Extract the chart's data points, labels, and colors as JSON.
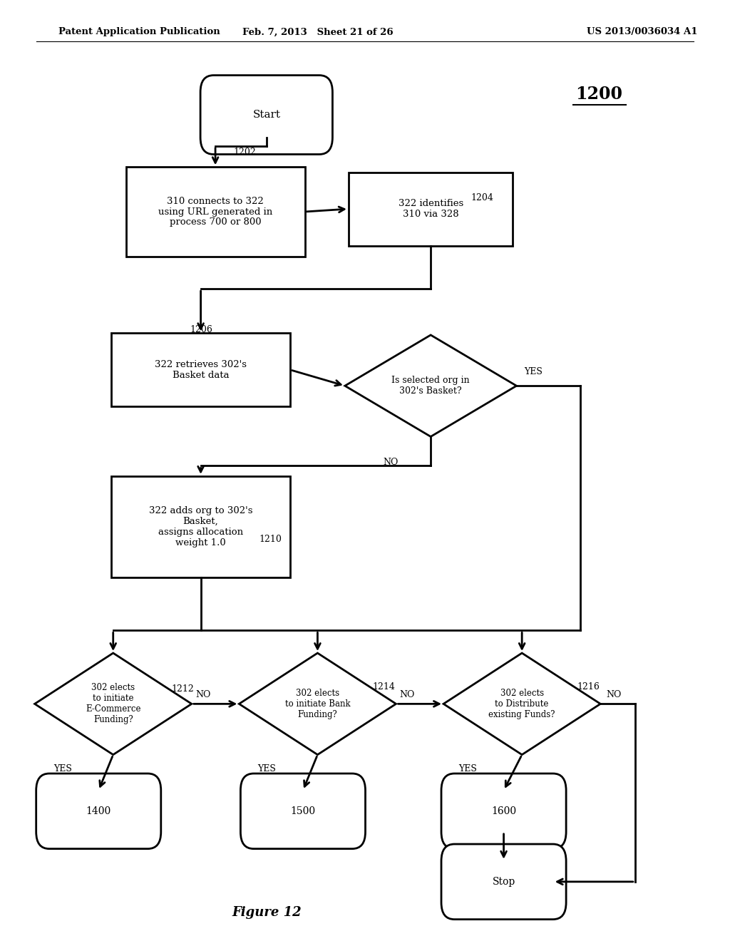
{
  "bg_color": "#ffffff",
  "header_left": "Patent Application Publication",
  "header_mid": "Feb. 7, 2013   Sheet 21 of 26",
  "header_right": "US 2013/0036034 A1",
  "figure_label": "Figure 12",
  "diagram_label": "1200",
  "lw": 2.0
}
